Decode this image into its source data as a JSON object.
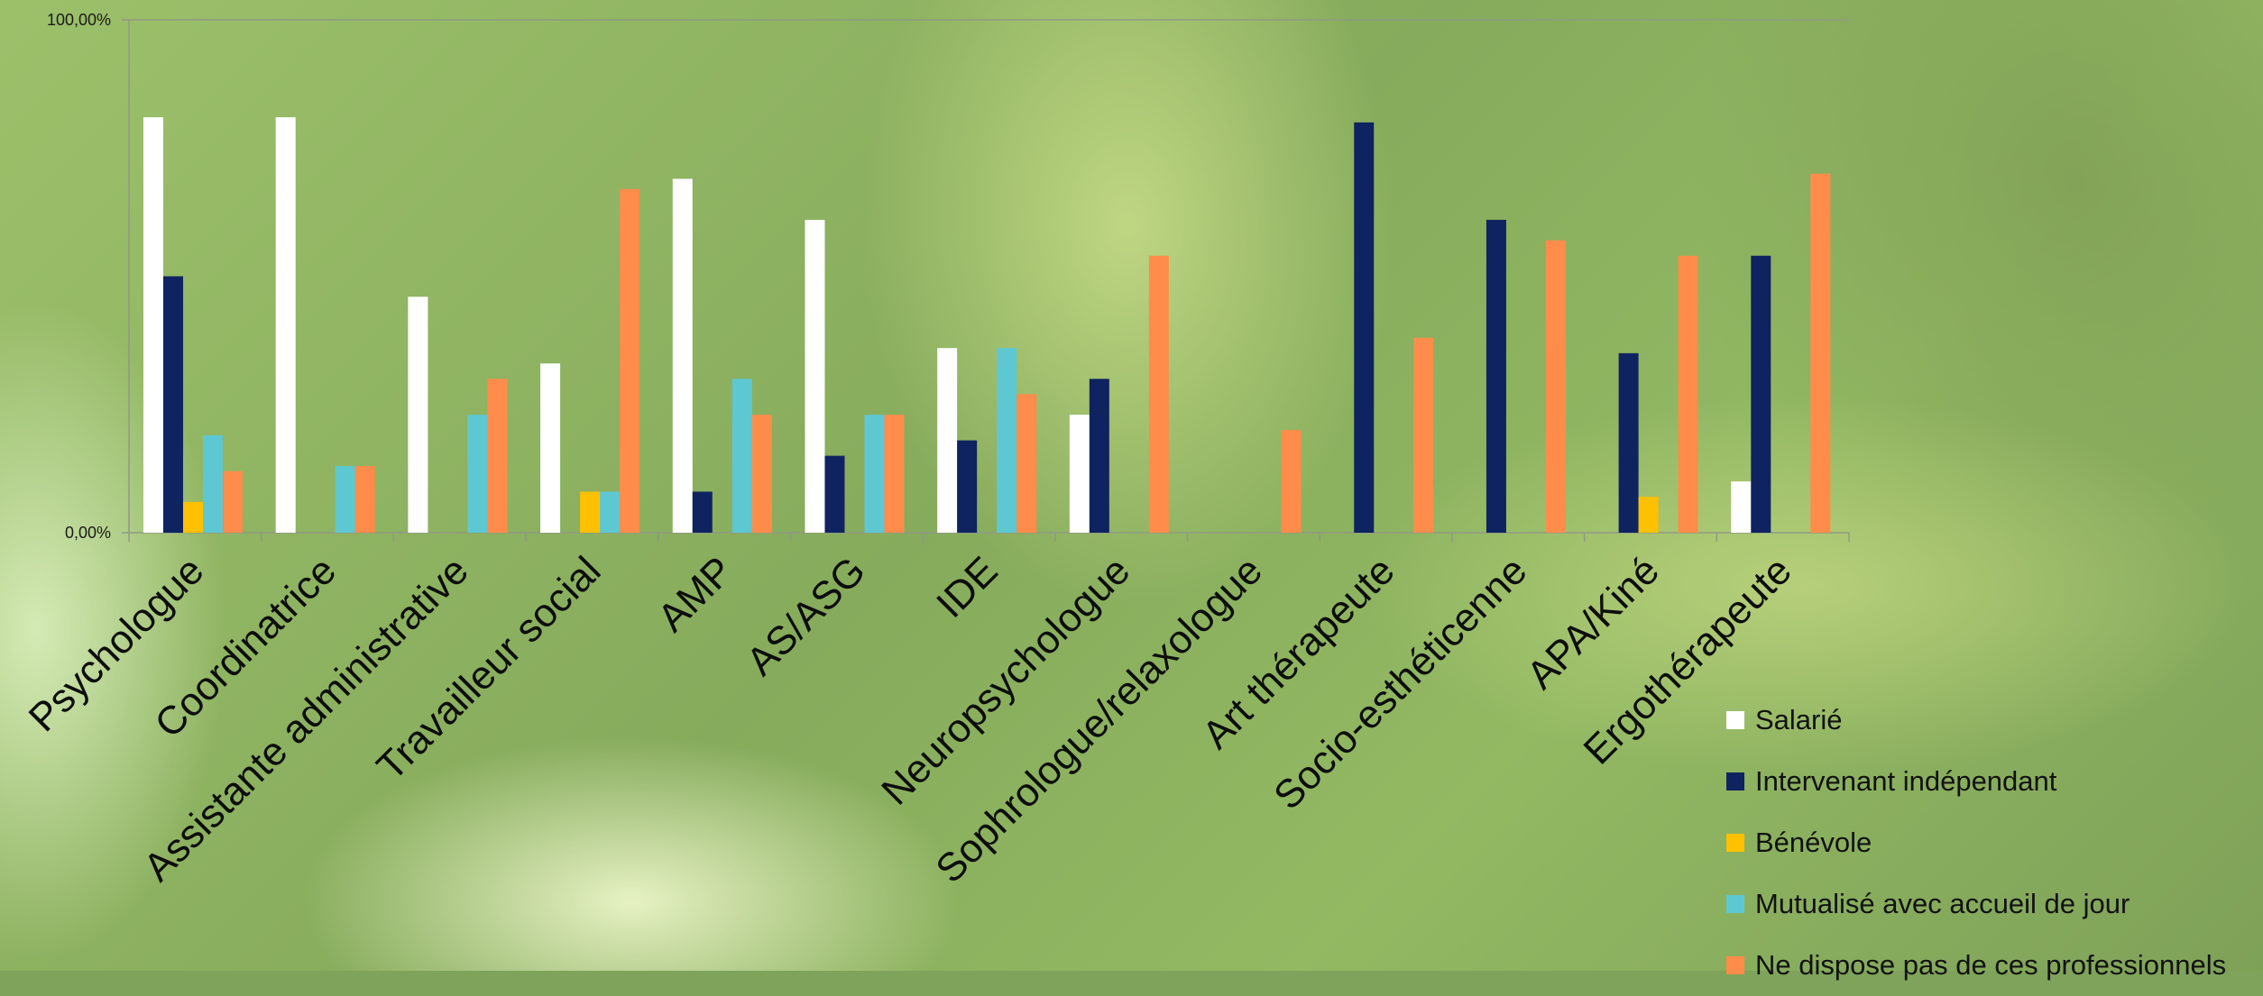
{
  "colors": {
    "Salarié": "#ffffff",
    "Intervenant indépendant": "#0f2360",
    "Bénévole": "#ffc000",
    "Mutualisé avec accueil de jour": "#5ec8d2",
    "Ne dispose pas de ces professionnels": "#ff8c4a",
    "axis": "#8f9a83"
  },
  "chart_data": {
    "type": "bar",
    "title": "",
    "xlabel": "",
    "ylabel": "",
    "ylim": [
      0,
      100
    ],
    "y_ticks": [
      "0,00%",
      "100,00%"
    ],
    "legend_position": "bottom-right",
    "grid": false,
    "categories": [
      "Psychologue",
      "Coordinatrice",
      "Assistante administrative",
      "Travailleur social",
      "AMP",
      "AS/ASG",
      "IDE",
      "Neuropsychologue",
      "Sophrologue/relaxologue",
      "Art thérapeute",
      "Socio-esthéticenne",
      "APA/Kiné",
      "Ergothérapeute"
    ],
    "series": [
      {
        "name": "Salarié",
        "values": [
          81,
          81,
          46,
          33,
          69,
          61,
          36,
          23,
          0,
          0,
          0,
          0,
          10
        ]
      },
      {
        "name": "Intervenant indépendant",
        "values": [
          50,
          0,
          0,
          0,
          8,
          15,
          18,
          30,
          0,
          80,
          61,
          35,
          54
        ]
      },
      {
        "name": "Bénévole",
        "values": [
          6,
          0,
          0,
          8,
          0,
          0,
          0,
          0,
          0,
          0,
          0,
          7,
          0
        ]
      },
      {
        "name": "Mutualisé avec accueil de jour",
        "values": [
          19,
          13,
          23,
          8,
          30,
          23,
          36,
          0,
          0,
          0,
          0,
          0,
          0
        ]
      },
      {
        "name": "Ne dispose pas de ces professionnels",
        "values": [
          12,
          13,
          30,
          67,
          23,
          23,
          27,
          54,
          20,
          38,
          57,
          54,
          70
        ]
      }
    ]
  }
}
